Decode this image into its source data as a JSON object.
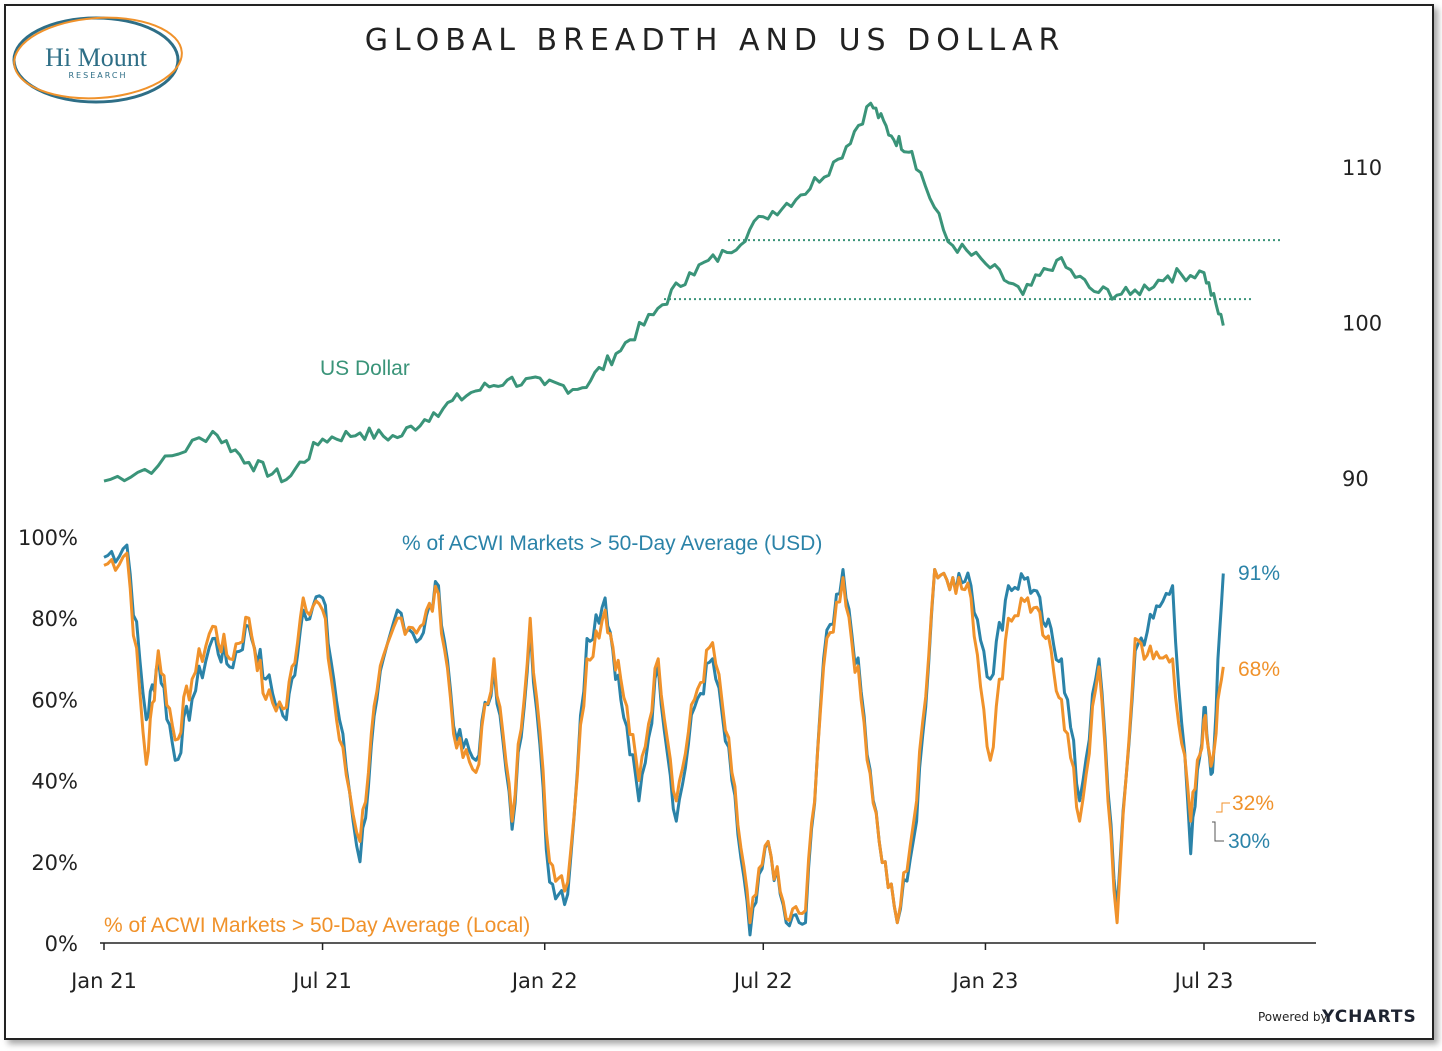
{
  "logo": {
    "name": "Hi Mount",
    "sub": "RESEARCH"
  },
  "credit": {
    "powered_by": "Powered by",
    "brand": "YCHARTS"
  },
  "colors": {
    "dollar": "#3a9479",
    "usd_breadth": "#2b83a8",
    "local_breadth": "#f0922b",
    "dotted": "#3a9479"
  },
  "chart_data": [
    {
      "type": "line",
      "title": "GLOBAL BREADTH AND US DOLLAR",
      "ylim": [
        88,
        117
      ],
      "yticks": [
        "110",
        "100",
        "90"
      ],
      "ytick_values": [
        110,
        100,
        90
      ],
      "xlim": [
        "2021-01-01",
        "2023-10-15"
      ],
      "x": [
        "2021-01-01",
        "2021-02-15",
        "2021-04-01",
        "2021-05-01",
        "2021-06-01",
        "2021-07-01",
        "2021-08-01",
        "2021-09-01",
        "2021-10-01",
        "2021-11-01",
        "2021-12-01",
        "2022-01-01",
        "2022-02-01",
        "2022-03-01",
        "2022-04-01",
        "2022-05-01",
        "2022-06-01",
        "2022-07-01",
        "2022-08-01",
        "2022-09-01",
        "2022-09-28",
        "2022-10-15",
        "2022-11-01",
        "2022-12-01",
        "2023-01-01",
        "2023-02-01",
        "2023-03-01",
        "2023-04-01",
        "2023-05-01",
        "2023-06-01",
        "2023-07-01",
        "2023-07-17"
      ],
      "series": [
        {
          "name": "US Dollar",
          "values": [
            89.8,
            90.8,
            93.0,
            91.0,
            89.9,
            92.5,
            92.9,
            92.6,
            94.2,
            95.5,
            96.3,
            96.0,
            95.8,
            98.0,
            100.5,
            103.2,
            104.5,
            106.8,
            108.2,
            110.5,
            114.1,
            112.0,
            111.0,
            105.2,
            103.8,
            101.8,
            104.0,
            102.0,
            101.8,
            103.0,
            103.2,
            99.8
          ]
        }
      ],
      "reference_lines": [
        105.3,
        101.5
      ],
      "annotations": [
        "US Dollar"
      ]
    },
    {
      "type": "line",
      "ylim": [
        0,
        100
      ],
      "yticks": [
        "100%",
        "80%",
        "60%",
        "40%",
        "20%",
        "0%"
      ],
      "ytick_values": [
        100,
        80,
        60,
        40,
        20,
        0
      ],
      "xticks": [
        "Jan 21",
        "Jul 21",
        "Jan 22",
        "Jul 22",
        "Jan 23",
        "Jul 23"
      ],
      "xtick_dates": [
        "2021-01-01",
        "2021-07-01",
        "2022-01-01",
        "2022-07-01",
        "2023-01-01",
        "2023-07-01"
      ],
      "x": [
        "2021-01-01",
        "2021-01-20",
        "2021-02-05",
        "2021-02-15",
        "2021-03-01",
        "2021-03-15",
        "2021-04-01",
        "2021-04-15",
        "2021-05-01",
        "2021-05-15",
        "2021-06-01",
        "2021-06-15",
        "2021-07-01",
        "2021-07-15",
        "2021-08-01",
        "2021-08-15",
        "2021-09-01",
        "2021-09-20",
        "2021-10-05",
        "2021-10-20",
        "2021-11-05",
        "2021-11-20",
        "2021-12-05",
        "2021-12-20",
        "2022-01-05",
        "2022-01-20",
        "2022-02-05",
        "2022-02-20",
        "2022-03-05",
        "2022-03-20",
        "2022-04-05",
        "2022-04-20",
        "2022-05-05",
        "2022-05-20",
        "2022-06-05",
        "2022-06-20",
        "2022-07-05",
        "2022-07-20",
        "2022-08-05",
        "2022-08-20",
        "2022-09-05",
        "2022-09-20",
        "2022-10-05",
        "2022-10-20",
        "2022-11-05",
        "2022-11-20",
        "2022-12-05",
        "2022-12-20",
        "2023-01-05",
        "2023-01-20",
        "2023-02-05",
        "2023-02-20",
        "2023-03-05",
        "2023-03-20",
        "2023-04-05",
        "2023-04-20",
        "2023-05-05",
        "2023-05-20",
        "2023-06-05",
        "2023-06-20",
        "2023-07-01",
        "2023-07-08",
        "2023-07-17"
      ],
      "series": [
        {
          "name": "% of ACWI Markets > 50-Day Average (USD)",
          "values": [
            95,
            98,
            55,
            70,
            45,
            60,
            75,
            68,
            78,
            65,
            55,
            82,
            85,
            55,
            20,
            60,
            82,
            75,
            88,
            50,
            45,
            68,
            28,
            78,
            15,
            12,
            75,
            85,
            60,
            35,
            68,
            30,
            58,
            70,
            40,
            2,
            25,
            5,
            5,
            70,
            92,
            62,
            25,
            5,
            30,
            92,
            90,
            88,
            65,
            88,
            90,
            78,
            70,
            35,
            70,
            8,
            72,
            80,
            88,
            22,
            58,
            42,
            91
          ]
        },
        {
          "name": "% of ACWI Markets > 50-Day Average (Local)",
          "values": [
            93,
            96,
            44,
            72,
            50,
            65,
            78,
            70,
            80,
            60,
            58,
            85,
            82,
            50,
            25,
            62,
            80,
            78,
            86,
            48,
            42,
            70,
            30,
            80,
            20,
            15,
            70,
            82,
            65,
            40,
            70,
            35,
            60,
            74,
            42,
            5,
            25,
            6,
            8,
            68,
            90,
            60,
            25,
            5,
            35,
            92,
            90,
            85,
            45,
            80,
            85,
            75,
            60,
            30,
            68,
            5,
            75,
            70,
            70,
            30,
            55,
            45,
            68
          ]
        }
      ],
      "end_labels": {
        "usd_end": "91%",
        "local_end": "68%",
        "usd_min": "30%",
        "local_min": "32%"
      }
    }
  ]
}
